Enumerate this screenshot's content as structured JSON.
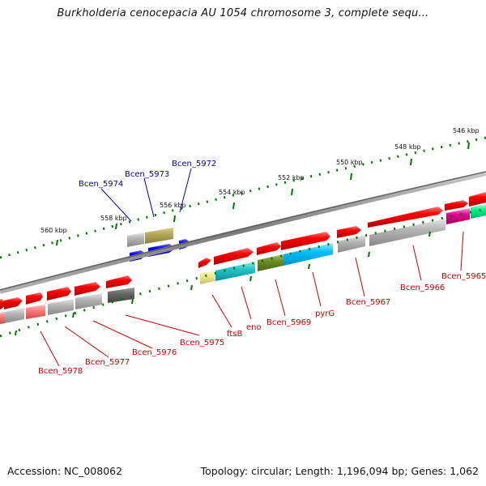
{
  "title": "Burkholderia cenocepacia AU 1054 chromosome 3, complete sequ...",
  "accession": "Accession: NC_008062",
  "summary": "Topology: circular; Length: 1,196,094 bp; Genes: 1,062",
  "scale_labels": [
    "546 kbp",
    "548 kbp",
    "550 kbp",
    "552 kbp",
    "554 kbp",
    "556 kbp",
    "558 kbp",
    "560 kbp"
  ],
  "gene_labels_top": [
    "Bcen_5974",
    "Bcen_5973",
    "Bcen_5972"
  ],
  "gene_labels_bottom": [
    "ftsB",
    "eno",
    "Bcen_5969",
    "pyrG",
    "Bcen_5967",
    "Bcen_5966",
    "Bcen_5965",
    "Bcen_5975",
    "Bcen_5976",
    "Bcen_5977",
    "Bcen_5978"
  ],
  "colors": {
    "top_label": "#0000aa",
    "bottom_label": "#cc0000",
    "gene_red": "#ff0000",
    "gene_blue": "#0000ff",
    "tick_green": "#007700",
    "backbone": "#8a8a8a"
  }
}
